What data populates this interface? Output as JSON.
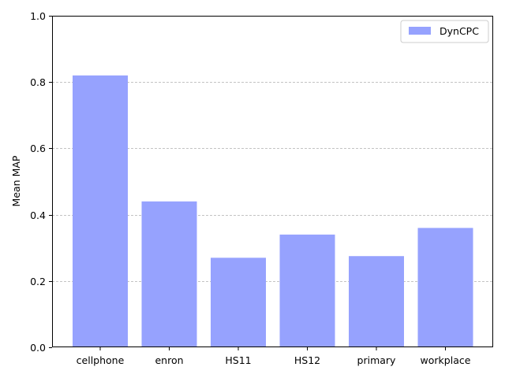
{
  "chart_data": {
    "type": "bar",
    "categories": [
      "cellphone",
      "enron",
      "HS11",
      "HS12",
      "primary",
      "workplace"
    ],
    "series": [
      {
        "name": "DynCPC",
        "values": [
          0.82,
          0.44,
          0.27,
          0.34,
          0.275,
          0.36
        ],
        "color": "#96a2fe"
      }
    ],
    "xlabel": "",
    "ylabel": "Mean MAP",
    "ylim": [
      0,
      1.0
    ],
    "yticks": [
      "0.0",
      "0.2",
      "0.4",
      "0.6",
      "0.8",
      "1.0"
    ],
    "grid": "y-dashed",
    "legend_position": "top-right"
  }
}
